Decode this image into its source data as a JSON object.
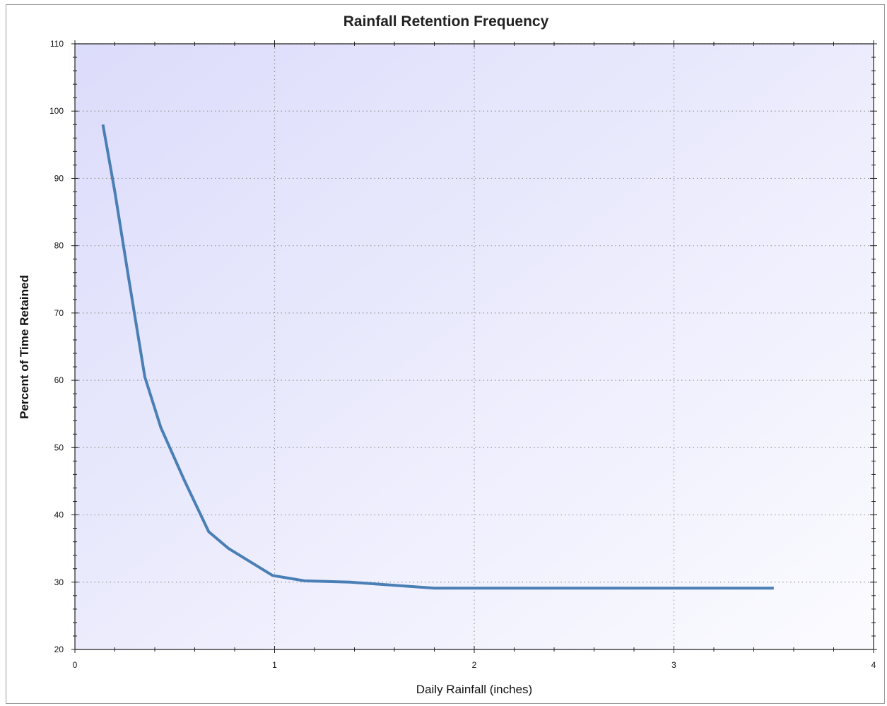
{
  "chart_data": {
    "type": "line",
    "title": "Rainfall Retention Frequency",
    "xlabel": "Daily Rainfall (inches)",
    "ylabel": "Percent of Time Retained",
    "xlim": [
      0,
      4
    ],
    "ylim": [
      20,
      110
    ],
    "x_ticks": [
      "0",
      "1",
      "2",
      "3",
      "4"
    ],
    "y_ticks": [
      "20",
      "30",
      "40",
      "50",
      "60",
      "70",
      "80",
      "90",
      "100",
      "110"
    ],
    "grid": true,
    "legend": "none",
    "series": [
      {
        "color": "#4a7fb5",
        "x": [
          0.14,
          0.2,
          0.27,
          0.35,
          0.43,
          0.55,
          0.67,
          0.77,
          0.99,
          1.15,
          1.38,
          1.8,
          2.5,
          3.0,
          3.5
        ],
        "y": [
          98,
          88,
          75,
          60.5,
          53,
          45,
          37.5,
          35,
          31,
          30.2,
          30,
          29.1,
          29.1,
          29.1,
          29.1
        ]
      }
    ]
  }
}
